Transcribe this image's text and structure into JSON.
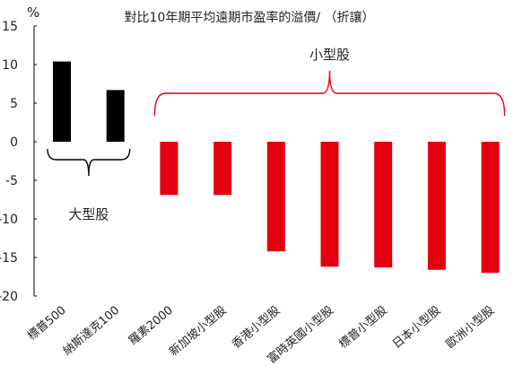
{
  "chart_data": {
    "type": "bar",
    "title": "對比10年期平均遠期市盈率的溢價/ （折讓）",
    "ylabel": "%",
    "xlabel": "",
    "ylim": [
      -20,
      15
    ],
    "yticks": [
      15,
      10,
      5,
      0,
      -5,
      -10,
      -15,
      -20
    ],
    "grid": false,
    "categories": [
      "標普500",
      "納斯達克100",
      "羅素2000",
      "新加坡小型股",
      "香港小型股",
      "富時英國小型股",
      "標普小型股",
      "日本小型股",
      "歐洲小型股"
    ],
    "values": [
      10.4,
      6.7,
      -6.9,
      -6.9,
      -14.2,
      -16.2,
      -16.3,
      -16.6,
      -17.0
    ],
    "colors": [
      "#000000",
      "#000000",
      "#e3000f",
      "#e3000f",
      "#e3000f",
      "#e3000f",
      "#e3000f",
      "#e3000f",
      "#e3000f"
    ],
    "groups": [
      {
        "label": "大型股",
        "from": 0,
        "to": 1,
        "side": "below"
      },
      {
        "label": "小型股",
        "from": 2,
        "to": 8,
        "side": "above"
      }
    ]
  }
}
